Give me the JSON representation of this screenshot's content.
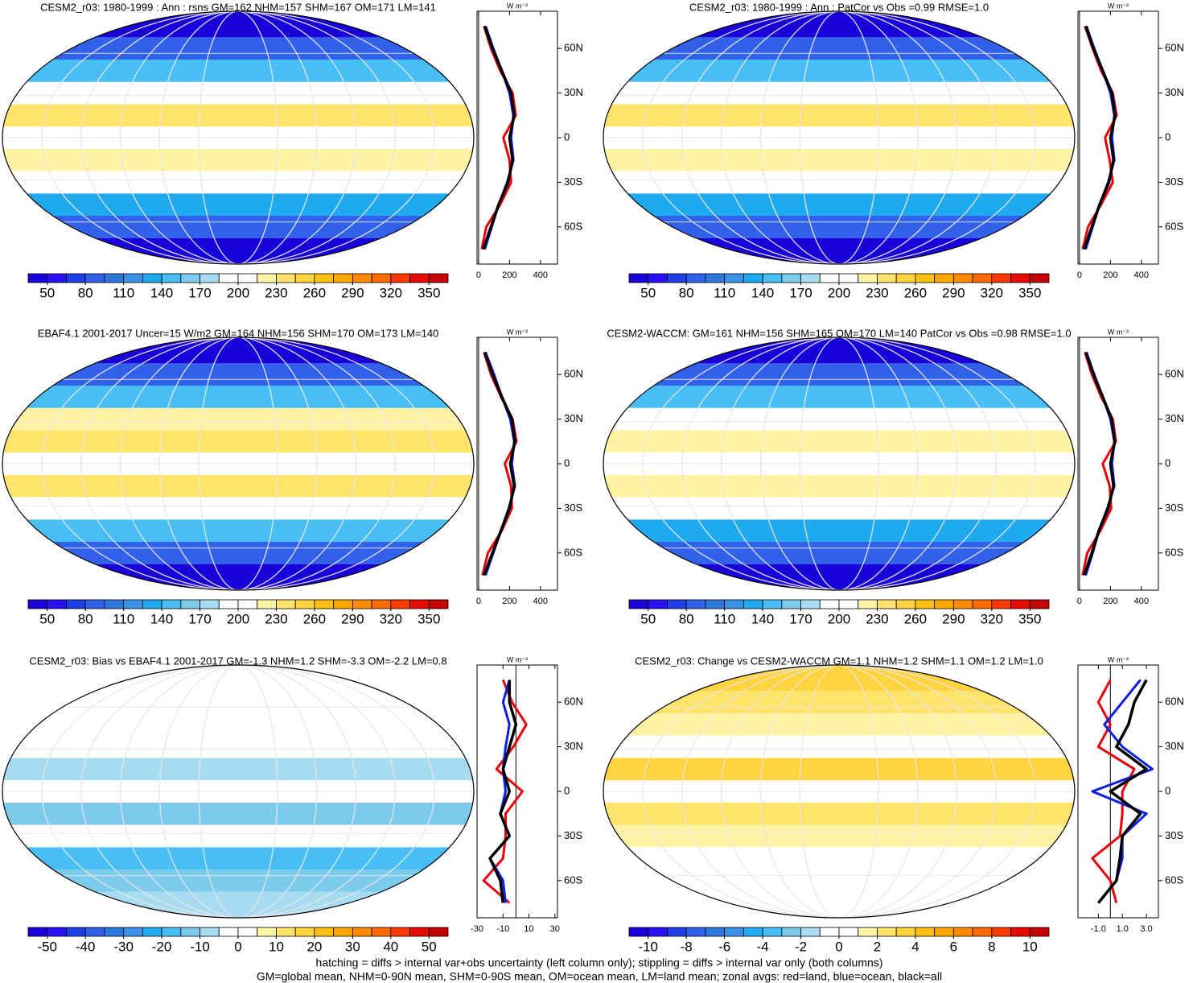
{
  "chart_data": [
    {
      "type": "map",
      "title": "CESM2_r03: 1980-1999 : Ann : rsns GM=162 NHM=157 SHM=167 OM=171 LM=141",
      "units": "W m⁻²",
      "y": [
        -75,
        -60,
        -45,
        -30,
        -15,
        0,
        15,
        30,
        45,
        60,
        75
      ],
      "ylim": [
        -85,
        85
      ],
      "yticks": [
        {
          "value": 60,
          "label": "60N"
        },
        {
          "value": 30,
          "label": "30N"
        },
        0,
        {
          "value": -30,
          "label": "30S"
        },
        {
          "value": -60,
          "label": "60S"
        }
      ],
      "xlim": [
        -10,
        510
      ],
      "xticks": [
        0,
        200,
        400
      ],
      "series": [
        {
          "color": "#e8000b",
          "values": [
            20,
            50,
            140,
            210,
            200,
            160,
            240,
            220,
            140,
            80,
            35
          ]
        },
        {
          "color": "#0a1fe0",
          "values": [
            40,
            85,
            130,
            185,
            225,
            210,
            225,
            200,
            150,
            95,
            45
          ]
        },
        {
          "color": "#000000",
          "values": [
            30,
            80,
            130,
            190,
            220,
            200,
            230,
            210,
            150,
            90,
            40
          ]
        }
      ],
      "colorbar": {
        "clim": [
          35,
          365
        ],
        "ticks": [
          50,
          80,
          110,
          140,
          170,
          200,
          230,
          260,
          290,
          320,
          350
        ]
      }
    },
    {
      "type": "map",
      "title": "CESM2_r03: 1980-1999 : Ann : PatCor vs Obs =0.99 RMSE=1.0",
      "units": "W m⁻²",
      "y": [
        -75,
        -60,
        -45,
        -30,
        -15,
        0,
        15,
        30,
        45,
        60,
        75
      ],
      "ylim": [
        -85,
        85
      ],
      "yticks": [
        {
          "value": 60,
          "label": "60N"
        },
        {
          "value": 30,
          "label": "30N"
        },
        0,
        {
          "value": -30,
          "label": "30S"
        },
        {
          "value": -60,
          "label": "60S"
        }
      ],
      "xlim": [
        -10,
        510
      ],
      "xticks": [
        0,
        200,
        400
      ],
      "series": [
        {
          "color": "#e8000b",
          "values": [
            20,
            55,
            140,
            215,
            195,
            165,
            240,
            215,
            140,
            85,
            35
          ]
        },
        {
          "color": "#0a1fe0",
          "values": [
            40,
            85,
            130,
            185,
            225,
            210,
            225,
            200,
            150,
            95,
            45
          ]
        },
        {
          "color": "#000000",
          "values": [
            30,
            80,
            130,
            190,
            220,
            200,
            230,
            210,
            150,
            90,
            40
          ]
        }
      ],
      "colorbar": {
        "clim": [
          35,
          365
        ],
        "ticks": [
          50,
          80,
          110,
          140,
          170,
          200,
          230,
          260,
          290,
          320,
          350
        ]
      }
    },
    {
      "type": "map",
      "title": "EBAF4.1 2001-2017 Uncer=15 W/m2 GM=164 NHM=156 SHM=170 OM=173 LM=140",
      "units": "W m⁻²",
      "y": [
        -75,
        -60,
        -45,
        -30,
        -15,
        0,
        15,
        30,
        45,
        60,
        75
      ],
      "ylim": [
        -85,
        85
      ],
      "yticks": [
        {
          "value": 60,
          "label": "60N"
        },
        {
          "value": 30,
          "label": "30N"
        },
        0,
        {
          "value": -30,
          "label": "30S"
        },
        {
          "value": -60,
          "label": "60S"
        }
      ],
      "xlim": [
        -10,
        510
      ],
      "xticks": [
        0,
        200,
        400
      ],
      "series": [
        {
          "color": "#e8000b",
          "values": [
            25,
            60,
            150,
            215,
            210,
            170,
            245,
            220,
            145,
            80,
            35
          ]
        },
        {
          "color": "#0a1fe0",
          "values": [
            45,
            95,
            145,
            195,
            235,
            215,
            230,
            205,
            150,
            100,
            45
          ]
        },
        {
          "color": "#000000",
          "values": [
            35,
            90,
            145,
            200,
            230,
            205,
            235,
            215,
            150,
            90,
            40
          ]
        }
      ],
      "colorbar": {
        "clim": [
          35,
          365
        ],
        "ticks": [
          50,
          80,
          110,
          140,
          170,
          200,
          230,
          260,
          290,
          320,
          350
        ]
      }
    },
    {
      "type": "map",
      "title": "CESM2-WACCM: GM=161 NHM=156 SHM=165 OM=170 LM=140 PatCor vs Obs =0.98 RMSE=1.0",
      "units": "W m⁻²",
      "y": [
        -75,
        -60,
        -45,
        -30,
        -15,
        0,
        15,
        30,
        45,
        60,
        75
      ],
      "ylim": [
        -85,
        85
      ],
      "yticks": [
        {
          "value": 60,
          "label": "60N"
        },
        {
          "value": 30,
          "label": "30N"
        },
        0,
        {
          "value": -30,
          "label": "30S"
        },
        {
          "value": -60,
          "label": "60S"
        }
      ],
      "xlim": [
        -10,
        510
      ],
      "xticks": [
        0,
        200,
        400
      ],
      "series": [
        {
          "color": "#e8000b",
          "values": [
            20,
            50,
            135,
            205,
            195,
            150,
            235,
            215,
            140,
            80,
            35
          ]
        },
        {
          "color": "#0a1fe0",
          "values": [
            40,
            85,
            125,
            180,
            225,
            210,
            225,
            200,
            150,
            95,
            45
          ]
        },
        {
          "color": "#000000",
          "values": [
            30,
            80,
            125,
            185,
            220,
            200,
            228,
            208,
            150,
            90,
            40
          ]
        }
      ],
      "colorbar": {
        "clim": [
          35,
          365
        ],
        "ticks": [
          50,
          80,
          110,
          140,
          170,
          200,
          230,
          260,
          290,
          320,
          350
        ]
      }
    },
    {
      "type": "map",
      "title": "CESM2_r03: Bias vs EBAF4.1 2001-2017 GM=-1.3 NHM=1.2 SHM=-3.3 OM=-2.2 LM=0.8",
      "units": "W m⁻²",
      "y": [
        -75,
        -60,
        -45,
        -30,
        -15,
        0,
        15,
        30,
        45,
        60,
        75
      ],
      "ylim": [
        -85,
        85
      ],
      "yticks": [
        {
          "value": 60,
          "label": "60N"
        },
        {
          "value": 30,
          "label": "30N"
        },
        0,
        {
          "value": -30,
          "label": "30S"
        },
        {
          "value": -60,
          "label": "60S"
        }
      ],
      "xlim": [
        -30,
        32
      ],
      "xticks": [
        -30,
        -10,
        10,
        30
      ],
      "series": [
        {
          "color": "#e8000b",
          "values": [
            -5,
            -25,
            -10,
            -8,
            -8,
            5,
            -15,
            -2,
            8,
            -3,
            -10
          ]
        },
        {
          "color": "#0a1fe0",
          "values": [
            -8,
            -10,
            -20,
            -5,
            -12,
            -8,
            -10,
            -8,
            -5,
            -10,
            -5
          ]
        },
        {
          "color": "#000000",
          "values": [
            -10,
            -12,
            -20,
            -5,
            -12,
            -5,
            -10,
            -5,
            0,
            -5,
            -5
          ]
        }
      ],
      "colorbar": {
        "clim": [
          -55,
          55
        ],
        "ticks": [
          -50,
          -40,
          -30,
          -20,
          -10,
          0,
          10,
          20,
          30,
          40,
          50
        ]
      }
    },
    {
      "type": "map",
      "title": "CESM2_r03: Change vs CESM2-WACCM GM=1.1 NHM=1.2 SHM=1.1 OM=1.2 LM=1.0",
      "units": "W m⁻²",
      "y": [
        -75,
        -60,
        -45,
        -30,
        -15,
        0,
        15,
        30,
        45,
        60,
        75
      ],
      "ylim": [
        -85,
        85
      ],
      "yticks": [
        {
          "value": 60,
          "label": "60N"
        },
        {
          "value": 30,
          "label": "30N"
        },
        0,
        {
          "value": -30,
          "label": "30S"
        },
        {
          "value": -60,
          "label": "60S"
        }
      ],
      "xlim": [
        -2.7,
        4
      ],
      "xticks": [
        {
          "value": -1,
          "label": "-1.0"
        },
        {
          "value": 1,
          "label": "1.0"
        },
        {
          "value": 3,
          "label": "3.0"
        }
      ],
      "series": [
        {
          "color": "#e8000b",
          "values": [
            0.5,
            0,
            -1.5,
            0.8,
            1,
            1,
            2,
            -1,
            0,
            -1,
            0
          ]
        },
        {
          "color": "#0a1fe0",
          "values": [
            -1,
            0.5,
            1,
            1,
            3,
            -1.5,
            3.5,
            1,
            -0.5,
            1,
            2.5
          ]
        },
        {
          "color": "#000000",
          "values": [
            -1,
            0.5,
            0.8,
            1,
            2.5,
            0,
            3,
            0.5,
            1.5,
            2,
            3
          ]
        }
      ],
      "colorbar": {
        "clim": [
          -11,
          11
        ],
        "ticks": [
          -10,
          -8,
          -6,
          -4,
          -2,
          0,
          2,
          4,
          6,
          8,
          10
        ]
      }
    }
  ],
  "palette": [
    "#1a00d8",
    "#2a10f5",
    "#1f3fe6",
    "#3160ea",
    "#2c78dc",
    "#3a92e6",
    "#1fa9ee",
    "#47bff4",
    "#7ccbec",
    "#a7dbf2",
    "#ffffff",
    "#ffffff",
    "#fff4a6",
    "#ffe36b",
    "#ffd43f",
    "#ffbf10",
    "#ffa600",
    "#ff8c00",
    "#ff6a00",
    "#ff3a00",
    "#e60a00",
    "#c40000"
  ],
  "footer": [
    "hatching = diffs > internal var+obs uncertainty (left column only); stippling = diffs > internal var only (both columns)",
    "GM=global mean, NHM=0-90N mean, SHM=0-90S mean, OM=ocean mean, LM=land mean; zonal avgs: red=land, blue=ocean, black=all"
  ]
}
